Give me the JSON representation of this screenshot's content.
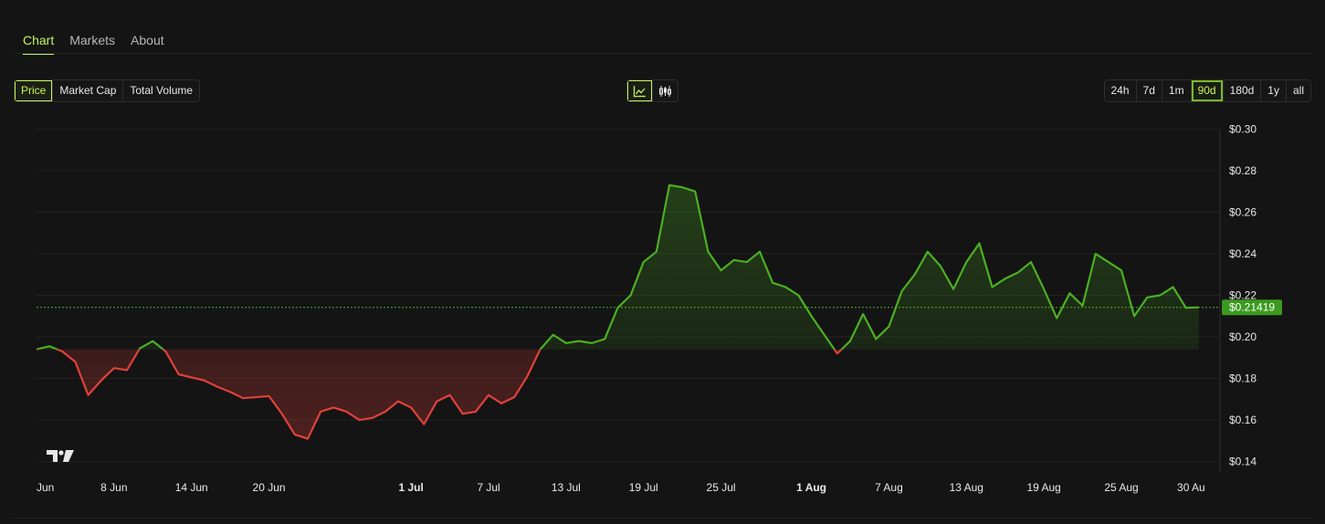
{
  "tabs": [
    {
      "label": "Chart",
      "active": true
    },
    {
      "label": "Markets",
      "active": false
    },
    {
      "label": "About",
      "active": false
    }
  ],
  "metric_buttons": [
    {
      "label": "Price",
      "active": true
    },
    {
      "label": "Market Cap",
      "active": false
    },
    {
      "label": "Total Volume",
      "active": false
    }
  ],
  "chart_type_buttons": [
    {
      "icon": "line-chart-icon",
      "active": true
    },
    {
      "icon": "candlestick-icon",
      "active": false
    }
  ],
  "range_buttons": [
    {
      "label": "24h",
      "active": false
    },
    {
      "label": "7d",
      "active": false
    },
    {
      "label": "1m",
      "active": false
    },
    {
      "label": "90d",
      "active": true
    },
    {
      "label": "180d",
      "active": false
    },
    {
      "label": "1y",
      "active": false
    },
    {
      "label": "all",
      "active": false
    }
  ],
  "colors": {
    "accent": "#c6f35e",
    "up": "#4caf23",
    "down": "#e0413b",
    "background": "#141414"
  },
  "chart_data": {
    "type": "line",
    "baseline": 0.194,
    "current_price_label": "$0.21419",
    "current_price": 0.21419,
    "ylim": [
      0.135,
      0.305
    ],
    "y_ticks": [
      {
        "value": 0.3,
        "label": "$0.30"
      },
      {
        "value": 0.28,
        "label": "$0.28"
      },
      {
        "value": 0.26,
        "label": "$0.26"
      },
      {
        "value": 0.24,
        "label": "$0.24"
      },
      {
        "value": 0.22,
        "label": "$0.22"
      },
      {
        "value": 0.2,
        "label": "$0.20"
      },
      {
        "value": 0.18,
        "label": "$0.18"
      },
      {
        "value": 0.16,
        "label": "$0.16"
      },
      {
        "value": 0.14,
        "label": "$0.14"
      }
    ],
    "xlim": [
      0,
      91
    ],
    "x_ticks": [
      {
        "x": 0.2,
        "label": "Jun",
        "bold": false
      },
      {
        "x": 6,
        "label": "8 Jun",
        "bold": false
      },
      {
        "x": 12,
        "label": "14 Jun",
        "bold": false
      },
      {
        "x": 18,
        "label": "20 Jun",
        "bold": false
      },
      {
        "x": 29,
        "label": "1 Jul",
        "bold": true
      },
      {
        "x": 35,
        "label": "7 Jul",
        "bold": false
      },
      {
        "x": 41,
        "label": "13 Jul",
        "bold": false
      },
      {
        "x": 47,
        "label": "19 Jul",
        "bold": false
      },
      {
        "x": 53,
        "label": "25 Jul",
        "bold": false
      },
      {
        "x": 60,
        "label": "1 Aug",
        "bold": true
      },
      {
        "x": 66,
        "label": "7 Aug",
        "bold": false
      },
      {
        "x": 72,
        "label": "13 Aug",
        "bold": false
      },
      {
        "x": 78,
        "label": "19 Aug",
        "bold": false
      },
      {
        "x": 84,
        "label": "25 Aug",
        "bold": false
      },
      {
        "x": 89.4,
        "label": "30 Au",
        "bold": false
      }
    ],
    "series": [
      {
        "values": [
          0.194,
          0.1955,
          0.193,
          0.188,
          0.172,
          0.179,
          0.185,
          0.184,
          0.1945,
          0.198,
          0.193,
          0.182,
          0.1805,
          0.179,
          0.176,
          0.1735,
          0.1705,
          0.171,
          0.1715,
          0.163,
          0.153,
          0.151,
          0.164,
          0.166,
          0.164,
          0.16,
          0.161,
          0.164,
          0.169,
          0.166,
          0.158,
          0.169,
          0.172,
          0.163,
          0.164,
          0.172,
          0.168,
          0.171,
          0.181,
          0.194,
          0.201,
          0.197,
          0.198,
          0.197,
          0.199,
          0.214,
          0.22,
          0.236,
          0.241,
          0.273,
          0.272,
          0.27,
          0.241,
          0.232,
          0.237,
          0.236,
          0.241,
          0.226,
          0.224,
          0.22,
          0.21,
          0.201,
          0.192,
          0.198,
          0.211,
          0.199,
          0.205,
          0.222,
          0.23,
          0.241,
          0.234,
          0.223,
          0.236,
          0.245,
          0.224,
          0.228,
          0.231,
          0.236,
          0.223,
          0.209,
          0.221,
          0.215,
          0.24,
          0.236,
          0.232,
          0.21,
          0.219,
          0.22,
          0.224,
          0.214,
          0.2142
        ]
      }
    ]
  }
}
